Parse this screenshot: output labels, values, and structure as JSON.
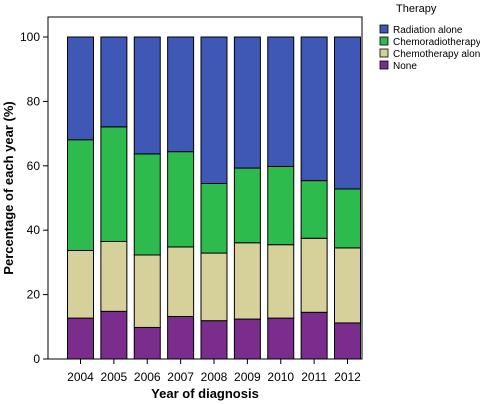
{
  "chart_data": {
    "type": "bar",
    "stacked": true,
    "percent": true,
    "title": "",
    "xlabel": "Year of diagnosis",
    "ylabel": "Percentage of each year (%)",
    "ylim": [
      0,
      100
    ],
    "yticks": [
      0,
      20,
      40,
      60,
      80,
      100
    ],
    "categories": [
      "2004",
      "2005",
      "2006",
      "2007",
      "2008",
      "2009",
      "2010",
      "2011",
      "2012"
    ],
    "legend": {
      "title": "Therapy",
      "placement": "top-right, outside plot"
    },
    "series": [
      {
        "name": "None",
        "color": "#7b2d8e",
        "values": [
          12.7,
          14.8,
          9.8,
          13.2,
          11.9,
          12.4,
          12.7,
          14.5,
          11.2
        ]
      },
      {
        "name": "Chemotherapy alone",
        "color": "#d6d09b",
        "values": [
          21.0,
          21.7,
          22.5,
          21.6,
          21.0,
          23.7,
          22.8,
          23.0,
          23.3
        ]
      },
      {
        "name": "Chemoradiotherapy",
        "color": "#2ebb4e",
        "values": [
          34.4,
          35.6,
          31.4,
          29.6,
          21.6,
          23.2,
          24.3,
          17.9,
          18.3
        ]
      },
      {
        "name": "Radiation alone",
        "color": "#3f57b5",
        "values": [
          31.9,
          27.9,
          36.3,
          35.6,
          45.5,
          40.7,
          40.2,
          44.6,
          47.2
        ]
      }
    ],
    "legend_order": [
      "Radiation alone",
      "Chemoradiotherapy",
      "Chemotherapy alone",
      "None"
    ],
    "grid": false
  }
}
